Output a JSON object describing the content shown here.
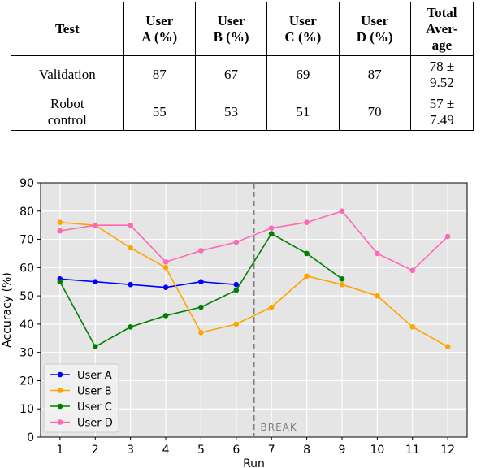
{
  "table": {
    "headers": [
      "Test",
      "User\nA (%)",
      "User\nB (%)",
      "User\nC (%)",
      "User\nD (%)",
      "Total\nAver-\nage"
    ],
    "rows": [
      [
        "Validation",
        "87",
        "67",
        "69",
        "87",
        "78 ±\n9.52"
      ],
      [
        "Robot\ncontrol",
        "55",
        "53",
        "51",
        "70",
        "57 ±\n7.49"
      ]
    ]
  },
  "chart_data": {
    "type": "line",
    "xlabel": "Run",
    "ylabel": "Accuracy (%)",
    "xlim": [
      0.45,
      12.55
    ],
    "ylim": [
      0,
      90
    ],
    "xticks": [
      1,
      2,
      3,
      4,
      5,
      6,
      7,
      8,
      9,
      10,
      11,
      12
    ],
    "yticks": [
      0,
      10,
      20,
      30,
      40,
      50,
      60,
      70,
      80,
      90
    ],
    "grid": true,
    "legend_position": "lower-left",
    "break": {
      "x": 6.5,
      "label": "BREAK",
      "color": "#7f7f7f"
    },
    "series": [
      {
        "name": "User A",
        "color": "#0000ff",
        "x": [
          1,
          2,
          3,
          4,
          5,
          6
        ],
        "values": [
          56,
          55,
          54,
          53,
          55,
          54
        ]
      },
      {
        "name": "User B",
        "color": "#ffa500",
        "x": [
          1,
          2,
          3,
          4,
          5,
          6,
          7,
          8,
          9,
          10,
          11,
          12
        ],
        "values": [
          76,
          75,
          67,
          60,
          37,
          40,
          46,
          57,
          54,
          50,
          39,
          32
        ]
      },
      {
        "name": "User C",
        "color": "#008000",
        "x": [
          1,
          2,
          3,
          4,
          5,
          6,
          7,
          8,
          9
        ],
        "values": [
          55,
          32,
          39,
          43,
          46,
          52,
          72,
          65,
          56
        ]
      },
      {
        "name": "User D",
        "color": "#ff69b4",
        "x": [
          1,
          2,
          3,
          4,
          5,
          6,
          7,
          8,
          9,
          10,
          11,
          12
        ],
        "values": [
          73,
          75,
          75,
          62,
          66,
          69,
          74,
          76,
          80,
          65,
          59,
          71
        ]
      }
    ],
    "plot_bg": "#e5e5e5",
    "grid_color": "#ffffff"
  }
}
